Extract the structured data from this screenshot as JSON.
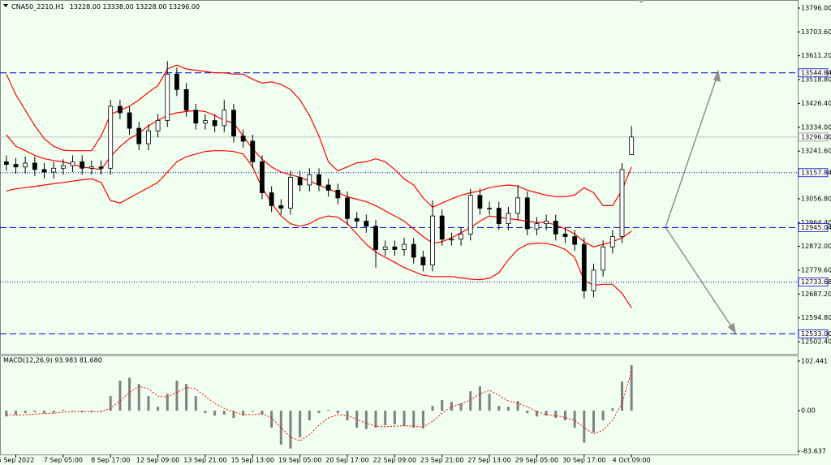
{
  "chart_data": [
    {
      "type": "candlestick",
      "title": "CNA50_2210,H1",
      "last_bar_labels": [
        "13228.00",
        "13338.00",
        "13228.00",
        "13296.00"
      ],
      "categories": [
        null,
        "5 Sep 2022",
        null,
        null,
        null,
        null,
        "7 Sep 05:00",
        null,
        null,
        null,
        null,
        "8 Sep 17:00",
        null,
        null,
        null,
        null,
        "12 Sep 09:00",
        null,
        null,
        null,
        null,
        "13 Sep 21:00",
        null,
        null,
        null,
        null,
        "15 Sep 13:00",
        null,
        null,
        null,
        null,
        "19 Sep 05:00",
        null,
        null,
        null,
        null,
        "20 Sep 17:00",
        null,
        null,
        null,
        null,
        "22 Sep 09:00",
        null,
        null,
        null,
        null,
        "23 Sep 21:00",
        null,
        null,
        null,
        null,
        "27 Sep 13:00",
        null,
        null,
        null,
        null,
        "29 Sep 05:00",
        null,
        null,
        null,
        null,
        "30 Sep 17:00",
        null,
        null,
        null,
        null,
        "4 Oct 09:00"
      ],
      "open": [
        13200,
        13190,
        13180,
        13195,
        13170,
        13160,
        13175,
        13185,
        13200,
        13175,
        13180,
        13175,
        13415,
        13390,
        13330,
        13270,
        13320,
        13360,
        13540,
        13480,
        13400,
        13350,
        13360,
        13340,
        13400,
        13300,
        13280,
        13200,
        13080,
        13030,
        13020,
        13140,
        13110,
        13150,
        13110,
        13090,
        13060,
        12980,
        12970,
        12950,
        12860,
        12870,
        12860,
        12880,
        12830,
        12800,
        12990,
        12900,
        12900,
        12920,
        13070,
        13020,
        13020,
        12960,
        13000,
        13060,
        12940,
        12960,
        12970,
        12920,
        12910,
        12880,
        12700,
        12780,
        12870,
        12910,
        13228
      ],
      "high": [
        13225,
        13215,
        13220,
        13220,
        13195,
        13200,
        13210,
        13225,
        13225,
        13205,
        13205,
        13440,
        13440,
        13415,
        13355,
        13345,
        13385,
        13590,
        13565,
        13505,
        13425,
        13385,
        13385,
        13440,
        13425,
        13325,
        13305,
        13225,
        13105,
        13055,
        13165,
        13165,
        13175,
        13175,
        13135,
        13115,
        13085,
        13005,
        12995,
        12975,
        12895,
        12895,
        12905,
        12905,
        12855,
        13050,
        13015,
        12925,
        12945,
        13095,
        13095,
        13045,
        13045,
        13025,
        13110,
        13085,
        12985,
        12995,
        12995,
        12945,
        12935,
        12905,
        12805,
        12895,
        12935,
        13195,
        13338
      ],
      "low": [
        13165,
        13155,
        13155,
        13145,
        13135,
        13135,
        13150,
        13160,
        13150,
        13150,
        13150,
        13150,
        13365,
        13305,
        13245,
        13245,
        13295,
        13335,
        13455,
        13375,
        13325,
        13325,
        13315,
        13315,
        13275,
        13255,
        13175,
        13055,
        13005,
        12995,
        12995,
        13085,
        13085,
        13085,
        13065,
        13035,
        12955,
        12945,
        12925,
        12790,
        12835,
        12835,
        12835,
        12805,
        12775,
        12775,
        12875,
        12875,
        12875,
        12895,
        12995,
        12995,
        12935,
        12935,
        12975,
        12915,
        12915,
        12935,
        12895,
        12885,
        12855,
        12670,
        12675,
        12755,
        12845,
        12885,
        13228
      ],
      "close": [
        13190,
        13180,
        13195,
        13170,
        13160,
        13175,
        13185,
        13200,
        13175,
        13180,
        13175,
        13415,
        13390,
        13330,
        13270,
        13320,
        13360,
        13540,
        13480,
        13400,
        13350,
        13360,
        13340,
        13400,
        13300,
        13280,
        13200,
        13080,
        13030,
        13020,
        13140,
        13110,
        13150,
        13110,
        13090,
        13060,
        12980,
        12970,
        12950,
        12860,
        12870,
        12860,
        12880,
        12830,
        12800,
        12990,
        12900,
        12900,
        12920,
        13070,
        13020,
        13020,
        12960,
        13000,
        13060,
        12940,
        12960,
        12970,
        12920,
        12910,
        12880,
        12700,
        12780,
        12870,
        12910,
        13170,
        13296
      ],
      "bands": {
        "color": "#ff0000",
        "upper": [
          13540,
          13460,
          13400,
          13340,
          13290,
          13260,
          13245,
          13243,
          13243,
          13243,
          13300,
          13384,
          13400,
          13415,
          13440,
          13470,
          13495,
          13560,
          13575,
          13560,
          13555,
          13550,
          13545,
          13545,
          13540,
          13540,
          13520,
          13505,
          13510,
          13500,
          13480,
          13440,
          13380,
          13300,
          13200,
          13165,
          13180,
          13196,
          13200,
          13212,
          13200,
          13170,
          13134,
          13110,
          13060,
          13024,
          13040,
          13056,
          13070,
          13080,
          13087,
          13100,
          13106,
          13110,
          13106,
          13090,
          13080,
          13071,
          13065,
          13065,
          13071,
          13100,
          13080,
          13030,
          13030,
          13090,
          13180
        ],
        "middle": [
          13305,
          13260,
          13243,
          13225,
          13212,
          13205,
          13200,
          13190,
          13180,
          13175,
          13170,
          13220,
          13259,
          13290,
          13310,
          13340,
          13360,
          13380,
          13390,
          13395,
          13399,
          13395,
          13380,
          13360,
          13350,
          13300,
          13250,
          13210,
          13180,
          13160,
          13150,
          13140,
          13125,
          13110,
          13095,
          13080,
          13065,
          13055,
          13045,
          13030,
          13010,
          12990,
          12970,
          12940,
          12910,
          12884,
          12890,
          12905,
          12925,
          12945,
          12970,
          12990,
          12985,
          12980,
          12975,
          12970,
          12965,
          12965,
          12955,
          12940,
          12920,
          12890,
          12870,
          12880,
          12890,
          12905,
          12931
        ],
        "lower": [
          13087,
          13095,
          13100,
          13105,
          13110,
          13115,
          13120,
          13125,
          13130,
          13134,
          13120,
          13050,
          13040,
          13060,
          13080,
          13100,
          13120,
          13160,
          13200,
          13220,
          13230,
          13240,
          13243,
          13243,
          13240,
          13230,
          13180,
          13100,
          13040,
          12990,
          12960,
          12950,
          12960,
          12980,
          12990,
          12985,
          12960,
          12920,
          12880,
          12850,
          12830,
          12810,
          12790,
          12775,
          12760,
          12755,
          12755,
          12755,
          12750,
          12745,
          12743,
          12748,
          12770,
          12820,
          12860,
          12880,
          12885,
          12884,
          12875,
          12860,
          12830,
          12740,
          12721,
          12725,
          12725,
          12690,
          12634
        ]
      },
      "ylim": [
        12461.8,
        13821
      ],
      "yticks": [
        {
          "value": 13796,
          "label": "13796.00"
        },
        {
          "value": 13703.6,
          "label": "13703.60"
        },
        {
          "value": 13611.2,
          "label": "13611.20"
        },
        {
          "value": 13518.8,
          "label": "13518.80"
        },
        {
          "value": 13426.4,
          "label": "13426.40"
        },
        {
          "value": 13334,
          "label": "13334.00"
        },
        {
          "value": 13241.6,
          "label": "13241.60"
        },
        {
          "value": 13056.8,
          "label": "13056.80"
        },
        {
          "value": 12964.4,
          "label": "12964.40"
        },
        {
          "value": 12872,
          "label": "12872.00"
        },
        {
          "value": 12779.6,
          "label": "12779.60"
        },
        {
          "value": 12687.2,
          "label": "12687.20"
        },
        {
          "value": 12594.8,
          "label": "12594.80"
        },
        {
          "value": 12502.4,
          "label": "12502.40"
        }
      ],
      "levels": [
        {
          "value": 13544.84,
          "label": "13544.84",
          "style": "dashed"
        },
        {
          "value": 13157.84,
          "label": "13157.84",
          "style": "dotted"
        },
        {
          "value": 12945.04,
          "label": "12945.04",
          "style": "dashed"
        },
        {
          "value": 12733.68,
          "label": "12733.68",
          "style": "dotted"
        },
        {
          "value": 12533,
          "label": "12533.00",
          "style": "dashed"
        }
      ],
      "level_color": "#0000cc",
      "current_price": {
        "value": 13296,
        "label": "13296.00"
      }
    },
    {
      "type": "bar",
      "title": "MACD(12,26,9) 93.983 81.680",
      "histogram": {
        "color": "#808080",
        "values": [
          -12,
          -8,
          -5,
          -3,
          -5,
          -4,
          2,
          -1,
          -3,
          -3,
          -2,
          30,
          62,
          68,
          55,
          30,
          8,
          35,
          62,
          55,
          30,
          -5,
          -10,
          -8,
          -15,
          -10,
          -2,
          -8,
          -35,
          -70,
          -78,
          -55,
          -20,
          -5,
          2,
          -5,
          -20,
          -35,
          -38,
          -35,
          -30,
          -28,
          -32,
          -35,
          -36,
          10,
          22,
          18,
          15,
          40,
          50,
          35,
          10,
          8,
          20,
          -5,
          -12,
          -10,
          -15,
          -20,
          -35,
          -66,
          -45,
          -20,
          5,
          60,
          93.983
        ]
      },
      "signal": {
        "color": "#ff0000",
        "values": [
          -8,
          -9,
          -8,
          -7,
          -6,
          -5,
          -3,
          -2,
          -2,
          -2,
          -2,
          5,
          20,
          38,
          50,
          45,
          30,
          28,
          38,
          48,
          45,
          30,
          15,
          5,
          -3,
          -8,
          -8,
          -6,
          -15,
          -35,
          -55,
          -62,
          -50,
          -30,
          -15,
          -8,
          -10,
          -18,
          -26,
          -32,
          -33,
          -32,
          -31,
          -32,
          -34,
          -22,
          -5,
          8,
          14,
          22,
          35,
          42,
          32,
          20,
          15,
          8,
          -2,
          -8,
          -10,
          -14,
          -20,
          -35,
          -48,
          -40,
          -20,
          15,
          81.68
        ]
      },
      "ylim": [
        -90.3,
        110.7
      ],
      "yticks": [
        102.441,
        {
          "value": 0,
          "label": "0.00"
        },
        -83.637
      ]
    }
  ]
}
